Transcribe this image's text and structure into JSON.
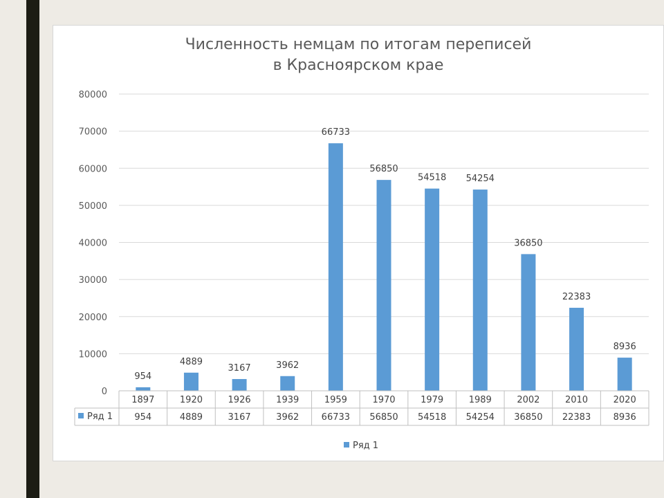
{
  "colors": {
    "bar": "#5b9bd5",
    "grid": "#d9d9d9",
    "text": "#595959",
    "sidebar": "#1c1c14",
    "background": "#eeebe5"
  },
  "chart_data": {
    "type": "bar",
    "title": [
      "Численность немцам по итогам переписей",
      "в Красноярском крае"
    ],
    "categories": [
      "1897",
      "1920",
      "1926",
      "1939",
      "1959",
      "1970",
      "1979",
      "1989",
      "2002",
      "2010",
      "2020"
    ],
    "series": [
      {
        "name": "Ряд 1",
        "values": [
          954,
          4889,
          3167,
          3962,
          66733,
          56850,
          54518,
          54254,
          36850,
          22383,
          8936
        ]
      }
    ],
    "ylim": [
      0,
      80000
    ],
    "yticks": [
      0,
      10000,
      20000,
      30000,
      40000,
      50000,
      60000,
      70000,
      80000
    ],
    "grid": true,
    "data_labels": true,
    "data_table": true,
    "legend": "bottom-center"
  }
}
